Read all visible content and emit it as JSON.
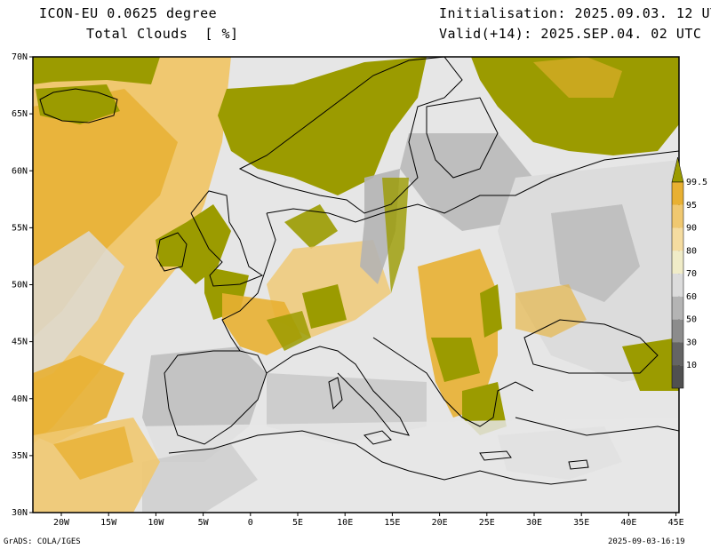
{
  "header": {
    "model": "ICON-EU 0.0625 degree",
    "variable": "Total Clouds  [ %]",
    "init": "Initialisation: 2025.09.03. 12 UTC",
    "valid": "Valid(+14): 2025.SEP.04. 02 UTC"
  },
  "axes": {
    "lat_labels": [
      "70N",
      "65N",
      "60N",
      "55N",
      "50N",
      "45N",
      "40N",
      "35N",
      "30N"
    ],
    "lon_labels": [
      "20W",
      "15W",
      "10W",
      "5W",
      "0",
      "5E",
      "10E",
      "15E",
      "20E",
      "25E",
      "30E",
      "35E",
      "40E",
      "45E"
    ]
  },
  "colorbar": {
    "levels": [
      "99.5",
      "95",
      "90",
      "80",
      "70",
      "60",
      "50",
      "30",
      "10"
    ],
    "colors": [
      "#9b9b00",
      "#e8b032",
      "#f0c870",
      "#f5dca0",
      "#f0ecc8",
      "#dcdcdc",
      "#b4b4b4",
      "#8c8c8c",
      "#646464",
      "#505050"
    ]
  },
  "footer": {
    "left": "GrADS: COLA/IGES",
    "right": "2025-09-03-16:19"
  }
}
